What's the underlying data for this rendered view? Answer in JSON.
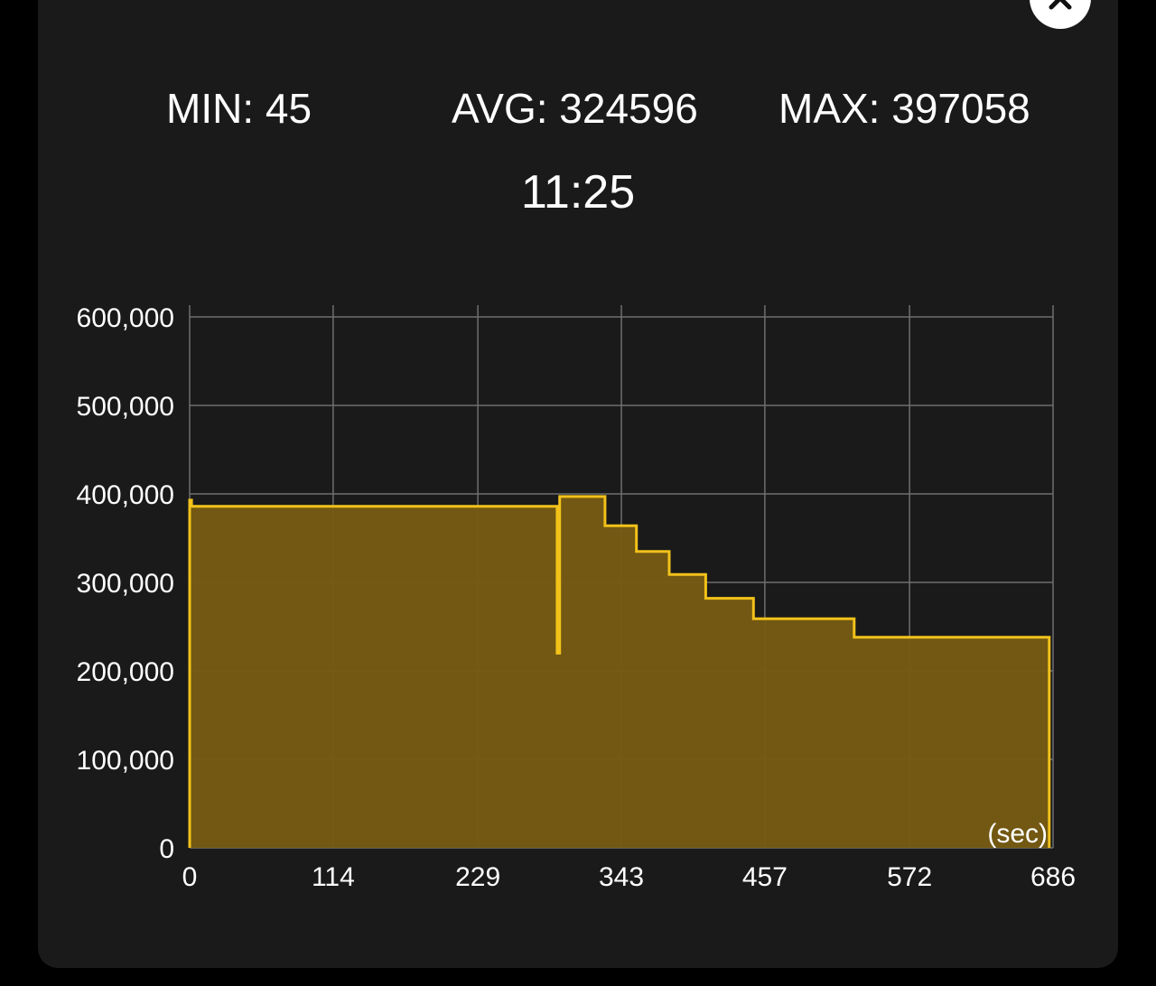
{
  "stats": {
    "min_label": "MIN:",
    "min_value": "45",
    "avg_label": "AVG:",
    "avg_value": "324596",
    "max_label": "MAX:",
    "max_value": "397058"
  },
  "duration": "11:25",
  "colors": {
    "background": "#1a1a1a",
    "line": "#f2c21a",
    "fill": "#745a12",
    "grid": "#6e6e6e",
    "text": "#ffffff"
  },
  "close_icon": "close-icon",
  "chart_data": {
    "type": "area",
    "title": "",
    "xlabel": "(sec)",
    "ylabel": "",
    "xlim": [
      0,
      686
    ],
    "ylim": [
      0,
      600000
    ],
    "grid": true,
    "x_tick_values": [
      0,
      114,
      229,
      343,
      457,
      572,
      686
    ],
    "x_tick_labels": [
      "0",
      "114",
      "229",
      "343",
      "457",
      "572",
      "686"
    ],
    "y_tick_values": [
      0,
      100000,
      200000,
      300000,
      400000,
      500000,
      600000
    ],
    "y_tick_labels": [
      "0",
      "100,000",
      "200,000",
      "300,000",
      "400,000",
      "500,000",
      "600,000"
    ],
    "series": [
      {
        "x": [
          0,
          0,
          1.5,
          1.5,
          292,
          292,
          294,
          294,
          330,
          330,
          355,
          355,
          381,
          381,
          410,
          410,
          448,
          448,
          528,
          528,
          683,
          683
        ],
        "y": [
          0,
          393000,
          393000,
          386000,
          386000,
          220000,
          220000,
          397000,
          397000,
          364000,
          364000,
          335000,
          335000,
          309000,
          309000,
          282000,
          282000,
          259000,
          259000,
          238000,
          238000,
          0
        ]
      }
    ]
  }
}
